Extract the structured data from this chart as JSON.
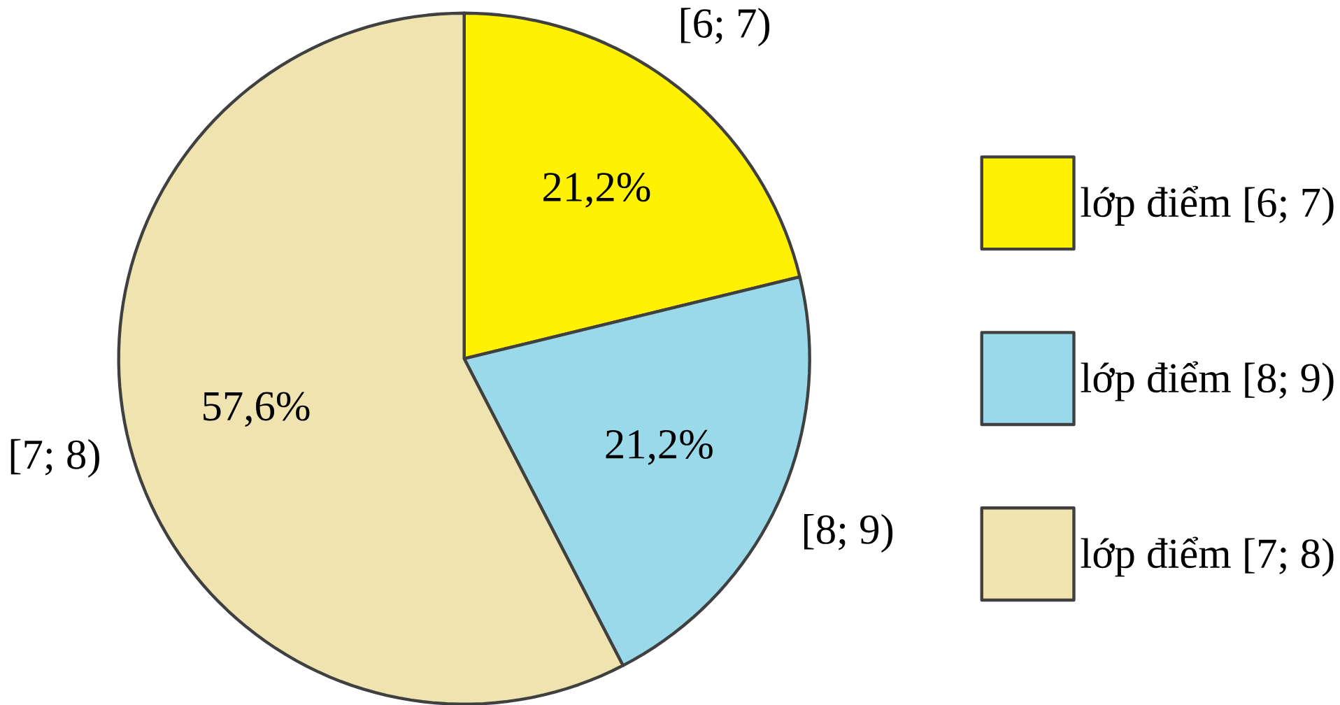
{
  "chart_data": {
    "type": "pie",
    "categories": [
      "lớp điểm [6; 7)",
      "lớp điểm [8; 9)",
      "lớp điểm [7; 8)"
    ],
    "values": [
      21.2,
      21.2,
      57.6
    ],
    "value_labels": [
      "21,2%",
      "21,2%",
      "57,6%"
    ],
    "colors": [
      "#fff200",
      "#99d9ea",
      "#efe4b0"
    ],
    "legend": "right",
    "annotations": [
      "[6; 7)",
      "[8; 9)",
      "[7; 8)"
    ]
  }
}
